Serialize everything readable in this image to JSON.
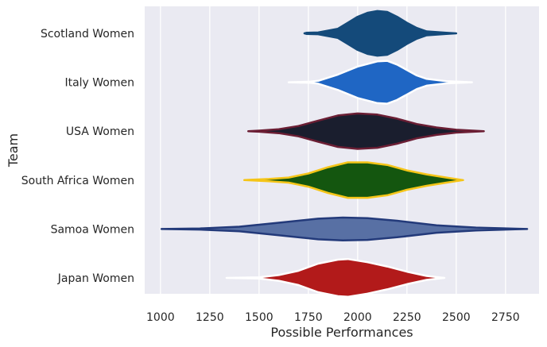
{
  "chart_data": {
    "type": "violin",
    "xlabel": "Possible Performances",
    "ylabel": "Team",
    "xlim": [
      920,
      2920
    ],
    "xticks": [
      1000,
      1250,
      1500,
      1750,
      2000,
      2250,
      2500,
      2750
    ],
    "grid": "vertical",
    "background": "#EAEAF2",
    "teams": [
      {
        "name": "Scotland Women",
        "fill": "#144A7A",
        "edge": "#144A7A",
        "profile": [
          [
            1730,
            0.0
          ],
          [
            1740,
            0.02
          ],
          [
            1800,
            0.03
          ],
          [
            1900,
            0.16
          ],
          [
            1950,
            0.37
          ],
          [
            2000,
            0.58
          ],
          [
            2050,
            0.72
          ],
          [
            2100,
            0.78
          ],
          [
            2150,
            0.75
          ],
          [
            2200,
            0.58
          ],
          [
            2250,
            0.37
          ],
          [
            2300,
            0.19
          ],
          [
            2350,
            0.07
          ],
          [
            2450,
            0.02
          ],
          [
            2500,
            0.0
          ]
        ]
      },
      {
        "name": "Italy Women",
        "fill": "#1F66C4",
        "edge": "#FFFFFF",
        "profile": [
          [
            1650,
            0.0
          ],
          [
            1760,
            0.02
          ],
          [
            1800,
            0.05
          ],
          [
            1900,
            0.27
          ],
          [
            2000,
            0.55
          ],
          [
            2100,
            0.73
          ],
          [
            2150,
            0.75
          ],
          [
            2200,
            0.62
          ],
          [
            2300,
            0.24
          ],
          [
            2350,
            0.12
          ],
          [
            2450,
            0.04
          ],
          [
            2580,
            0.0
          ]
        ]
      },
      {
        "name": "USA Women",
        "fill": "#1A1E2E",
        "edge": "#6B1E34",
        "profile": [
          [
            1445,
            0.0
          ],
          [
            1500,
            0.02
          ],
          [
            1600,
            0.07
          ],
          [
            1700,
            0.18
          ],
          [
            1800,
            0.37
          ],
          [
            1900,
            0.55
          ],
          [
            2000,
            0.62
          ],
          [
            2100,
            0.58
          ],
          [
            2200,
            0.44
          ],
          [
            2300,
            0.25
          ],
          [
            2400,
            0.13
          ],
          [
            2500,
            0.05
          ],
          [
            2640,
            0.0
          ]
        ]
      },
      {
        "name": "South Africa Women",
        "fill": "#14560F",
        "edge": "#F5C518",
        "profile": [
          [
            1425,
            0.0
          ],
          [
            1550,
            0.04
          ],
          [
            1650,
            0.09
          ],
          [
            1750,
            0.23
          ],
          [
            1850,
            0.45
          ],
          [
            1950,
            0.62
          ],
          [
            2050,
            0.62
          ],
          [
            2150,
            0.53
          ],
          [
            2250,
            0.34
          ],
          [
            2350,
            0.2
          ],
          [
            2450,
            0.09
          ],
          [
            2535,
            0.0
          ]
        ]
      },
      {
        "name": "Samoa Women",
        "fill": "#5870A4",
        "edge": "#233A7A",
        "profile": [
          [
            1005,
            0.0
          ],
          [
            1200,
            0.02
          ],
          [
            1400,
            0.08
          ],
          [
            1600,
            0.22
          ],
          [
            1800,
            0.36
          ],
          [
            1925,
            0.4
          ],
          [
            2050,
            0.38
          ],
          [
            2200,
            0.29
          ],
          [
            2400,
            0.13
          ],
          [
            2600,
            0.05
          ],
          [
            2800,
            0.01
          ],
          [
            2860,
            0.0
          ]
        ]
      },
      {
        "name": "Japan Women",
        "fill": "#B21A1A",
        "edge": "#FFFFFF",
        "profile": [
          [
            1335,
            0.0
          ],
          [
            1500,
            0.02
          ],
          [
            1600,
            0.1
          ],
          [
            1700,
            0.25
          ],
          [
            1800,
            0.5
          ],
          [
            1900,
            0.64
          ],
          [
            1950,
            0.66
          ],
          [
            2050,
            0.55
          ],
          [
            2150,
            0.4
          ],
          [
            2250,
            0.22
          ],
          [
            2350,
            0.07
          ],
          [
            2440,
            0.0
          ]
        ]
      }
    ]
  }
}
